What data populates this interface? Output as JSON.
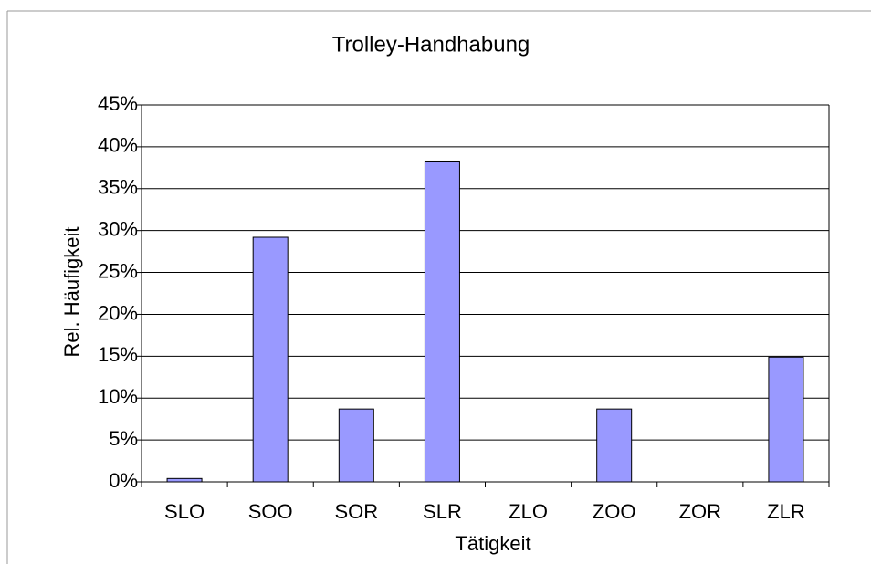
{
  "chart_data": {
    "type": "bar",
    "title": "Trolley-Handhabung",
    "x_label": "Tätigkeit",
    "y_label": "Rel. Häufigkeit",
    "categories": [
      "SLO",
      "SOO",
      "SOR",
      "SLR",
      "ZLO",
      "ZOO",
      "ZOR",
      "ZLR"
    ],
    "values": [
      0.4,
      29.2,
      8.7,
      38.3,
      0,
      8.7,
      0,
      14.9
    ],
    "color": "#9999ff",
    "ylim": [
      0,
      45
    ],
    "yticks": [
      {
        "value": 0,
        "label": "0%"
      },
      {
        "value": 5,
        "label": "5%"
      },
      {
        "value": 10,
        "label": "10%"
      },
      {
        "value": 15,
        "label": "15%"
      },
      {
        "value": 20,
        "label": "20%"
      },
      {
        "value": 25,
        "label": "25%"
      },
      {
        "value": 30,
        "label": "30%"
      },
      {
        "value": 35,
        "label": "35%"
      },
      {
        "value": 40,
        "label": "40%"
      },
      {
        "value": 45,
        "label": "45%"
      }
    ],
    "grid": true
  }
}
